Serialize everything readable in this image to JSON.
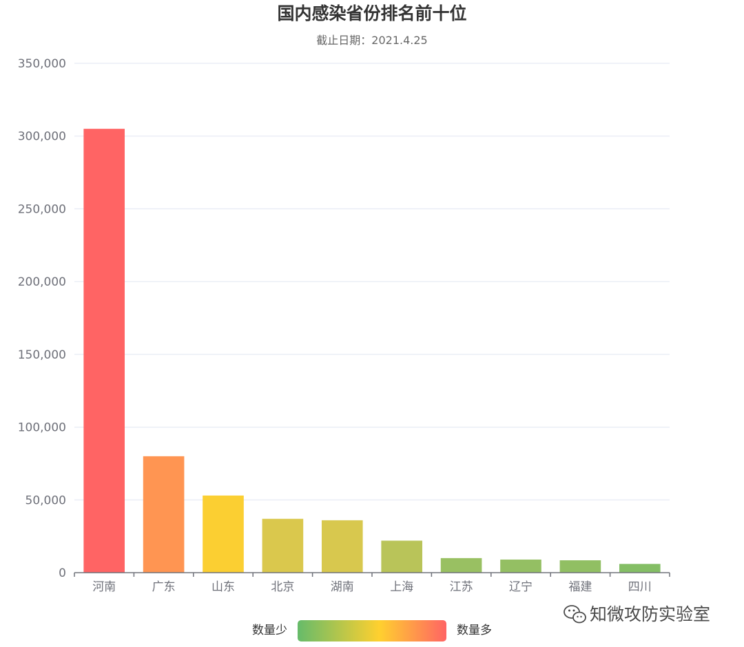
{
  "chart_data": {
    "type": "bar",
    "title": "国内感染省份排名前十位",
    "subtitle": "截止日期：2021.4.25",
    "categories": [
      "河南",
      "广东",
      "山东",
      "北京",
      "湖南",
      "上海",
      "江苏",
      "辽宁",
      "福建",
      "四川"
    ],
    "values": [
      305000,
      80000,
      53000,
      37000,
      36000,
      22000,
      10000,
      9000,
      8500,
      6000
    ],
    "ylim": [
      0,
      350000
    ],
    "yticks": [
      0,
      50000,
      100000,
      150000,
      200000,
      250000,
      300000,
      350000
    ],
    "ytick_labels": [
      "0",
      "50,000",
      "100,000",
      "150,000",
      "200,000",
      "250,000",
      "300,000",
      "350,000"
    ],
    "grid": true,
    "colors": {
      "bar_scale": [
        "#66bb6a",
        "#a4c160",
        "#d9c84e",
        "#ffd02f",
        "#ff8f55",
        "#ff6464"
      ],
      "grid": "#e0e6f1",
      "axis": "#6e7079"
    },
    "visual_map": {
      "low_label": "数量少",
      "high_label": "数量多",
      "placement": "bottom-center"
    }
  },
  "watermark": {
    "icon": "wechat-icon",
    "text": "知微攻防实验室"
  }
}
